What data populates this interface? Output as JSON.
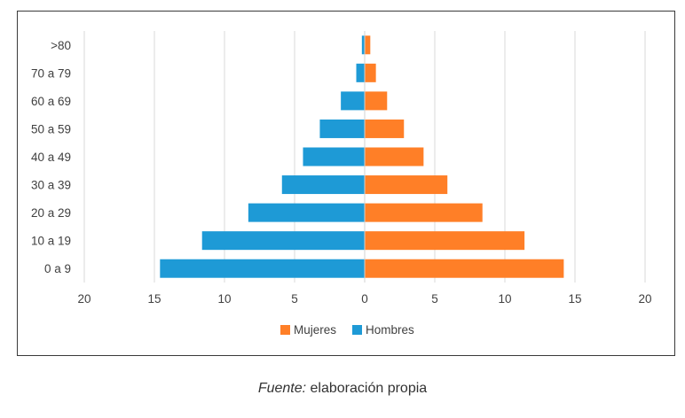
{
  "chart_data": {
    "type": "bar",
    "orientation": "horizontal",
    "layout": "population-pyramid",
    "categories": [
      "0 a 9",
      "10 a 19",
      "20 a 29",
      "30 a 39",
      "40 a 49",
      "50 a 59",
      "60 a 69",
      "70 a 79",
      ">80"
    ],
    "series": [
      {
        "name": "Mujeres",
        "side": "right",
        "color": "#ff7f27",
        "values": [
          14.2,
          11.4,
          8.4,
          5.9,
          4.2,
          2.8,
          1.6,
          0.8,
          0.4
        ]
      },
      {
        "name": "Hombres",
        "side": "left",
        "color": "#1e9ad6",
        "values": [
          14.6,
          11.6,
          8.3,
          5.9,
          4.4,
          3.2,
          1.7,
          0.6,
          0.2
        ]
      }
    ],
    "xlim": [
      -20,
      20
    ],
    "x_ticks": [
      -20,
      -15,
      -10,
      -5,
      0,
      5,
      10,
      15,
      20
    ],
    "x_tick_labels": [
      "20",
      "15",
      "10",
      "5",
      "0",
      "5",
      "10",
      "15",
      "20"
    ],
    "grid": "vertical",
    "legend": {
      "position": "bottom",
      "entries": [
        "Mujeres",
        "Hombres"
      ]
    },
    "title": "",
    "xlabel": "",
    "ylabel": ""
  },
  "caption": {
    "source_label": "Fuente:",
    "source_text": " elaboración propia"
  }
}
